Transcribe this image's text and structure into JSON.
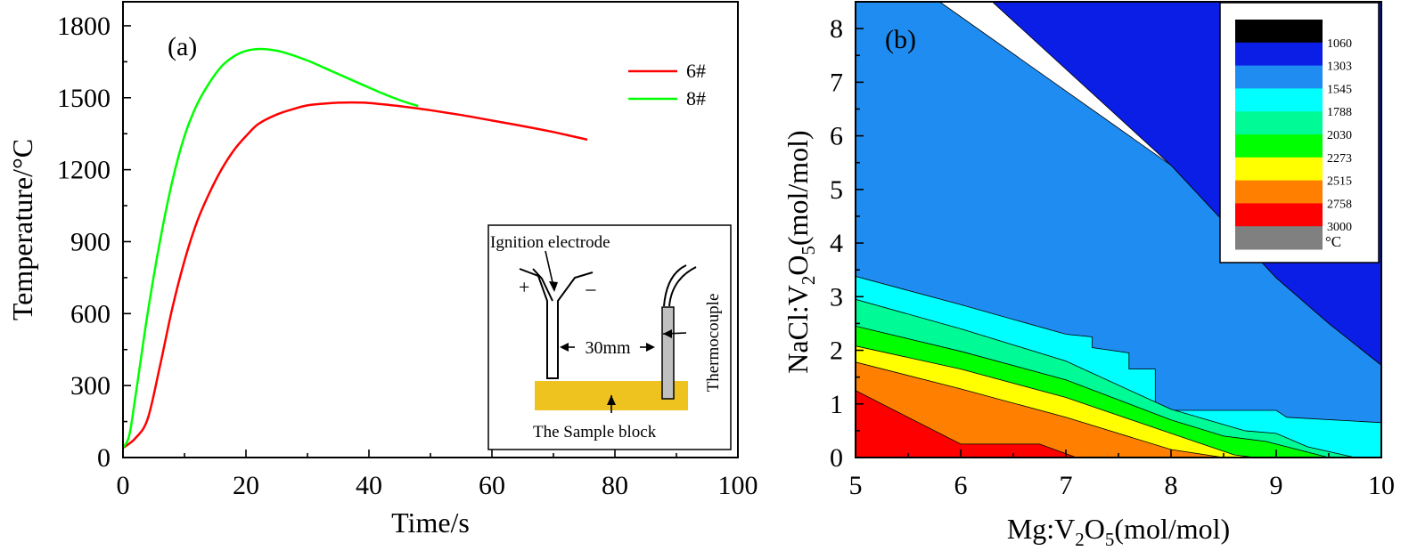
{
  "chart_data": [
    {
      "type": "line",
      "panel_label": "(a)",
      "xlabel": "Time/s",
      "ylabel": "Temperature/°C",
      "xlim": [
        0,
        100
      ],
      "ylim": [
        0,
        1900
      ],
      "x_ticks": [
        0,
        20,
        40,
        60,
        80,
        100
      ],
      "y_ticks": [
        0,
        300,
        600,
        900,
        1200,
        1500,
        1800
      ],
      "legend_position": "top-right",
      "series": [
        {
          "name": "6#",
          "color": "#ff0000",
          "points": [
            [
              0,
              40
            ],
            [
              2,
              80
            ],
            [
              4,
              160
            ],
            [
              6,
              380
            ],
            [
              8,
              620
            ],
            [
              10,
              820
            ],
            [
              12,
              980
            ],
            [
              14,
              1100
            ],
            [
              16,
              1200
            ],
            [
              18,
              1280
            ],
            [
              20,
              1340
            ],
            [
              22,
              1390
            ],
            [
              25,
              1430
            ],
            [
              28,
              1455
            ],
            [
              30,
              1468
            ],
            [
              33,
              1476
            ],
            [
              36,
              1480
            ],
            [
              40,
              1478
            ],
            [
              45,
              1465
            ],
            [
              50,
              1448
            ],
            [
              55,
              1428
            ],
            [
              60,
              1405
            ],
            [
              65,
              1382
            ],
            [
              70,
              1357
            ],
            [
              75.5,
              1325
            ]
          ]
        },
        {
          "name": "8#",
          "color": "#00ff00",
          "points": [
            [
              0,
              40
            ],
            [
              1,
              90
            ],
            [
              2,
              250
            ],
            [
              4,
              600
            ],
            [
              6,
              900
            ],
            [
              8,
              1150
            ],
            [
              10,
              1340
            ],
            [
              12,
              1470
            ],
            [
              14,
              1560
            ],
            [
              16,
              1630
            ],
            [
              18,
              1672
            ],
            [
              20,
              1695
            ],
            [
              22,
              1703
            ],
            [
              24,
              1700
            ],
            [
              26,
              1690
            ],
            [
              30,
              1655
            ],
            [
              34,
              1610
            ],
            [
              38,
              1565
            ],
            [
              42,
              1520
            ],
            [
              45,
              1490
            ],
            [
              48,
              1465
            ]
          ]
        }
      ],
      "inset": {
        "ignition_label": "Ignition electrode",
        "plus": "+",
        "minus": "−",
        "distance_label": "30mm",
        "thermocouple_label": "Thermocouple",
        "sample_label": "The Sample block",
        "sample_color": "#eec31f",
        "thermocouple_color": "#c0c0c0"
      }
    },
    {
      "type": "contour",
      "panel_label": "(b)",
      "xlabel": "Mg:V2O5(mol/mol)",
      "ylabel": "NaCl:V2O5(mol/mol)",
      "xlim": [
        5,
        10
      ],
      "ylim": [
        0,
        8.5
      ],
      "x_ticks": [
        5,
        6,
        7,
        8,
        9,
        10
      ],
      "y_ticks": [
        0,
        1,
        2,
        3,
        4,
        5,
        6,
        7,
        8
      ],
      "legend": {
        "levels": [
          "1060",
          "1303",
          "1545",
          "1788",
          "2030",
          "2273",
          "2515",
          "2758",
          "3000"
        ],
        "unit": "°C",
        "colors": [
          "#000000",
          "#0a1ee6",
          "#1e8cf0",
          "#00ffff",
          "#00fa96",
          "#00ff00",
          "#ffff00",
          "#ff8000",
          "#ff0000",
          "#808080"
        ]
      },
      "regions": [
        {
          "level": "3000",
          "color": "#ff0000",
          "points": [
            [
              5,
              0
            ],
            [
              5,
              1.25
            ],
            [
              6,
              0.25
            ],
            [
              6.75,
              0.25
            ],
            [
              7.1,
              0
            ]
          ]
        },
        {
          "level": "2758",
          "color": "#ff8000",
          "points": [
            [
              5,
              0
            ],
            [
              5,
              1.78
            ],
            [
              6,
              1.28
            ],
            [
              7,
              0.75
            ],
            [
              8,
              0.15
            ],
            [
              8.5,
              0
            ]
          ]
        },
        {
          "level": "2515",
          "color": "#ffff00",
          "points": [
            [
              5,
              0
            ],
            [
              5,
              2.08
            ],
            [
              6,
              1.65
            ],
            [
              7,
              1.12
            ],
            [
              8,
              0.45
            ],
            [
              8.6,
              0.05
            ],
            [
              8.8,
              0
            ]
          ]
        },
        {
          "level": "2273",
          "color": "#00ff00",
          "points": [
            [
              5,
              0
            ],
            [
              5,
              2.45
            ],
            [
              6,
              1.98
            ],
            [
              7,
              1.45
            ],
            [
              8,
              0.7
            ],
            [
              8.5,
              0.4
            ],
            [
              8.9,
              0.3
            ],
            [
              9.5,
              0
            ]
          ]
        },
        {
          "level": "2030",
          "color": "#00fa96",
          "points": [
            [
              5,
              0
            ],
            [
              5,
              2.95
            ],
            [
              6,
              2.4
            ],
            [
              7,
              1.8
            ],
            [
              8,
              0.9
            ],
            [
              8.7,
              0.5
            ],
            [
              9,
              0.45
            ],
            [
              9.3,
              0.2
            ],
            [
              9.75,
              0
            ]
          ]
        },
        {
          "level": "1788",
          "color": "#00ffff",
          "points": [
            [
              5,
              0
            ],
            [
              5,
              3.38
            ],
            [
              6,
              2.85
            ],
            [
              7,
              2.3
            ],
            [
              7.25,
              2.25
            ],
            [
              7.25,
              2.05
            ],
            [
              7.6,
              1.95
            ],
            [
              7.6,
              1.65
            ],
            [
              7.85,
              1.65
            ],
            [
              7.85,
              1.0
            ],
            [
              8,
              0.88
            ],
            [
              9,
              0.88
            ],
            [
              9.1,
              0.75
            ],
            [
              10,
              0.65
            ],
            [
              10,
              0
            ]
          ]
        },
        {
          "level": "1545",
          "color": "#1e8cf0",
          "points": [
            [
              5,
              0
            ],
            [
              5,
              8.5
            ],
            [
              5.8,
              8.5
            ],
            [
              8,
              5.45
            ],
            [
              9,
              3.35
            ],
            [
              9.5,
              2.5
            ],
            [
              10,
              1.72
            ],
            [
              10,
              0
            ]
          ]
        },
        {
          "level": "1303",
          "color": "#0a1ee6",
          "points": [
            [
              6.3,
              8.5
            ],
            [
              10,
              8.5
            ],
            [
              10,
              1.72
            ],
            [
              9.5,
              2.5
            ],
            [
              9,
              3.35
            ],
            [
              8,
              5.45
            ]
          ]
        }
      ]
    }
  ]
}
